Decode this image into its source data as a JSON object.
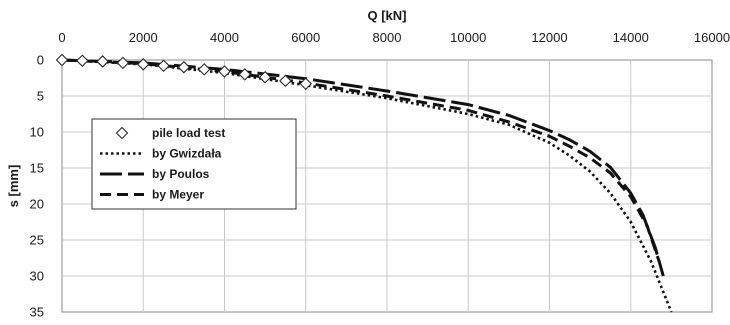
{
  "chart_data": {
    "type": "line",
    "title": "",
    "xlabel": "Q [kN]",
    "ylabel": "s [mm]",
    "x_axis_position": "top",
    "y_axis_inverted": true,
    "xlim": [
      0,
      16000
    ],
    "ylim": [
      0,
      35
    ],
    "x_ticks": [
      0,
      2000,
      4000,
      6000,
      8000,
      10000,
      12000,
      14000,
      16000
    ],
    "y_ticks": [
      0,
      5,
      10,
      15,
      20,
      25,
      30,
      35
    ],
    "x_tick_labels": [
      "0",
      "2000",
      "4000",
      "6000",
      "8000",
      "10000",
      "12000",
      "14000",
      "16000"
    ],
    "y_tick_labels": [
      "0",
      "5",
      "10",
      "15",
      "20",
      "25",
      "30",
      "35"
    ],
    "grid": true,
    "legend_position": "left",
    "series": [
      {
        "name": "pile load test",
        "style": "diamond-markers",
        "x": [
          0,
          500,
          1000,
          1500,
          2000,
          2500,
          3000,
          3500,
          4000,
          4500,
          5000,
          5500,
          6000
        ],
        "y": [
          0,
          0.1,
          0.2,
          0.4,
          0.6,
          0.8,
          1.0,
          1.3,
          1.6,
          2.0,
          2.4,
          2.9,
          3.3
        ]
      },
      {
        "name": "by Gwizdała",
        "style": "dotted",
        "x": [
          0,
          2000,
          4000,
          6000,
          8000,
          10000,
          11000,
          12000,
          12500,
          13000,
          13500,
          14000,
          14500,
          15000
        ],
        "y": [
          0,
          0.6,
          1.8,
          3.5,
          5.3,
          7.5,
          9.0,
          11.5,
          13.3,
          15.5,
          18.5,
          22.5,
          28.0,
          35.0
        ]
      },
      {
        "name": "by Poulos",
        "style": "long-dash",
        "x": [
          0,
          2000,
          4000,
          6000,
          8000,
          10000,
          11000,
          12000,
          12500,
          13000,
          13500,
          14000,
          14300,
          14600,
          14800
        ],
        "y": [
          0,
          0.4,
          1.3,
          2.6,
          4.3,
          6.2,
          7.7,
          9.8,
          11.1,
          12.7,
          14.9,
          18.5,
          21.5,
          26.0,
          30.0
        ]
      },
      {
        "name": "by Meyer",
        "style": "dash",
        "x": [
          0,
          2000,
          4000,
          6000,
          8000,
          10000,
          11000,
          12000,
          12500,
          13000,
          13500,
          14000,
          14400,
          14700
        ],
        "y": [
          0,
          0.5,
          1.6,
          3.2,
          5.0,
          7.0,
          8.6,
          10.6,
          12.0,
          13.6,
          15.7,
          19.0,
          23.0,
          28.0
        ]
      }
    ]
  }
}
